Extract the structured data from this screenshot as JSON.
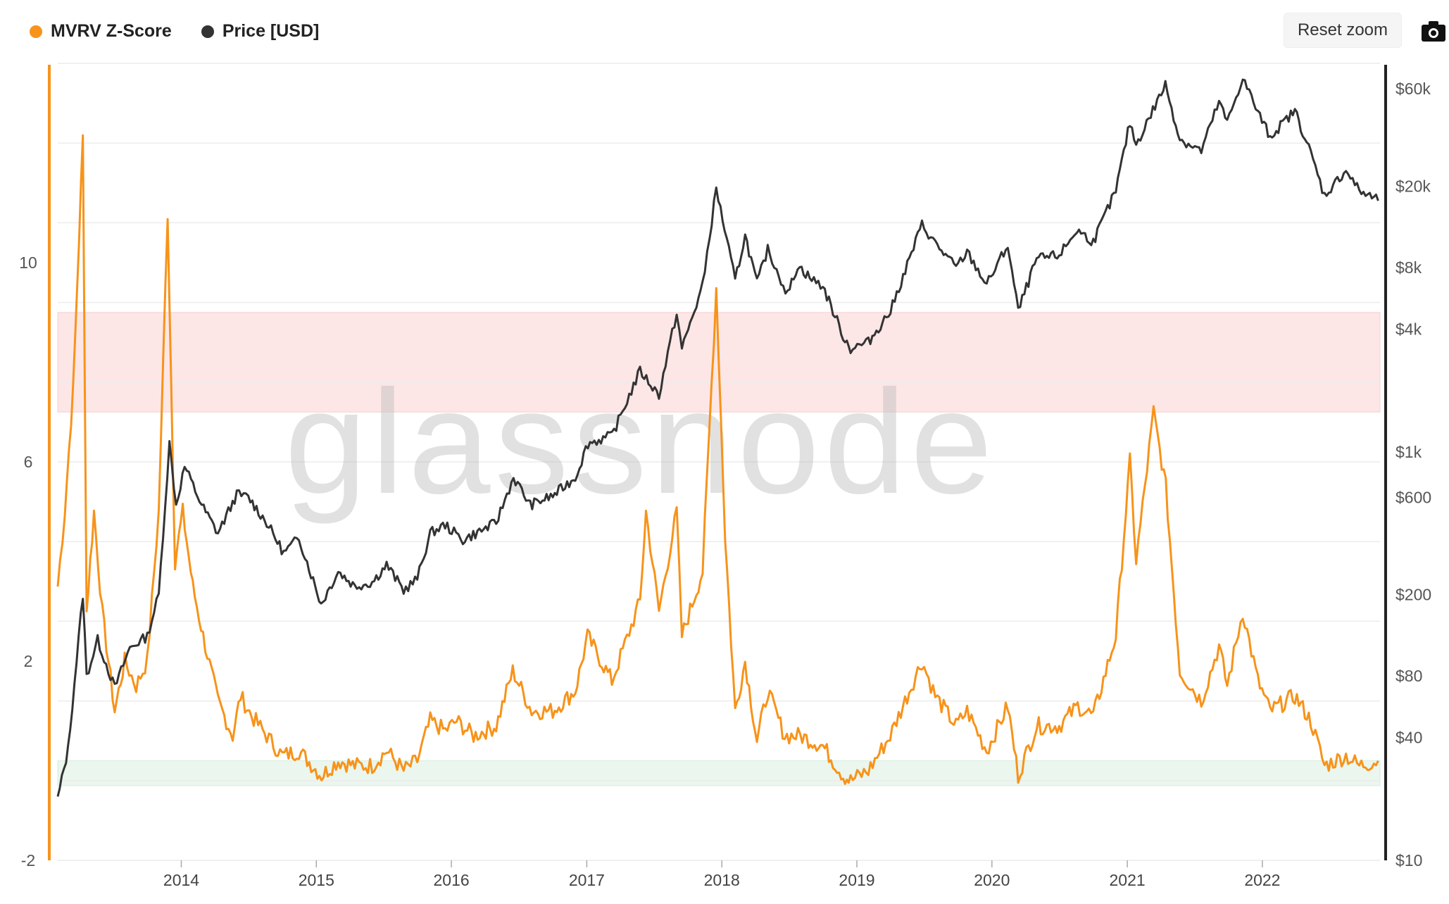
{
  "legend": {
    "series1_label": "MVRV Z-Score",
    "series2_label": "Price [USD]"
  },
  "toolbar": {
    "reset_zoom_label": "Reset zoom",
    "export_icon": "camera-icon"
  },
  "watermark": "glassnode",
  "colors": {
    "zscore": "#f7931a",
    "price": "#333333",
    "red_band": "#fde6e6",
    "green_band": "#eaf6ee",
    "grid": "#ececec"
  },
  "chart_data": {
    "type": "line",
    "x_ticks": [
      "2014",
      "2015",
      "2016",
      "2017",
      "2018",
      "2019",
      "2020",
      "2021",
      "2022"
    ],
    "x_range": [
      "2013-02-01",
      "2022-11-15"
    ],
    "left_axis": {
      "ticks": [
        "10",
        "6",
        "2",
        "-2"
      ],
      "range": [
        -2,
        14
      ]
    },
    "right_axis": {
      "scale": "log",
      "ticks": [
        "$60k",
        "$20k",
        "$8k",
        "$4k",
        "$1k",
        "$600",
        "$200",
        "$80",
        "$40",
        "$10"
      ],
      "range": [
        10,
        80000
      ]
    },
    "bands": [
      {
        "axis": "left",
        "from": 7,
        "to": 9,
        "color": "red"
      },
      {
        "axis": "left",
        "from": -0.5,
        "to": 0,
        "color": "green"
      }
    ],
    "series": [
      {
        "name": "MVRV Z-Score",
        "axis": "left",
        "points": [
          [
            "2013-02-01",
            3.5
          ],
          [
            "2013-02-20",
            5.0
          ],
          [
            "2013-03-15",
            7.5
          ],
          [
            "2013-04-10",
            12.5
          ],
          [
            "2013-04-20",
            3.0
          ],
          [
            "2013-05-10",
            5.0
          ],
          [
            "2013-06-01",
            3.0
          ],
          [
            "2013-07-05",
            1.0
          ],
          [
            "2013-08-01",
            2.0
          ],
          [
            "2013-09-01",
            1.5
          ],
          [
            "2013-10-01",
            2.0
          ],
          [
            "2013-11-01",
            5.0
          ],
          [
            "2013-11-25",
            11.0
          ],
          [
            "2013-12-15",
            4.0
          ],
          [
            "2014-01-05",
            5.0
          ],
          [
            "2014-02-01",
            3.5
          ],
          [
            "2014-03-01",
            2.5
          ],
          [
            "2014-04-10",
            1.2
          ],
          [
            "2014-05-20",
            0.5
          ],
          [
            "2014-06-10",
            1.3
          ],
          [
            "2014-07-10",
            0.9
          ],
          [
            "2014-08-20",
            0.5
          ],
          [
            "2014-10-01",
            0.1
          ],
          [
            "2014-11-15",
            0.2
          ],
          [
            "2015-01-15",
            -0.3
          ],
          [
            "2015-03-01",
            0.0
          ],
          [
            "2015-04-15",
            -0.1
          ],
          [
            "2015-06-01",
            -0.1
          ],
          [
            "2015-07-10",
            0.2
          ],
          [
            "2015-08-25",
            -0.2
          ],
          [
            "2015-10-01",
            0.0
          ],
          [
            "2015-11-05",
            0.8
          ],
          [
            "2015-12-15",
            0.6
          ],
          [
            "2016-01-15",
            0.8
          ],
          [
            "2016-03-01",
            0.5
          ],
          [
            "2016-05-01",
            0.7
          ],
          [
            "2016-06-15",
            1.8
          ],
          [
            "2016-08-05",
            1.0
          ],
          [
            "2016-10-01",
            1.0
          ],
          [
            "2016-12-01",
            1.4
          ],
          [
            "2017-01-03",
            2.5
          ],
          [
            "2017-03-10",
            1.6
          ],
          [
            "2017-05-25",
            3.2
          ],
          [
            "2017-06-10",
            5.0
          ],
          [
            "2017-07-15",
            3.0
          ],
          [
            "2017-09-01",
            5.0
          ],
          [
            "2017-09-15",
            2.5
          ],
          [
            "2017-11-10",
            3.8
          ],
          [
            "2017-12-17",
            9.5
          ],
          [
            "2018-01-10",
            4.5
          ],
          [
            "2018-02-06",
            1.0
          ],
          [
            "2018-03-05",
            2.0
          ],
          [
            "2018-04-06",
            0.4
          ],
          [
            "2018-05-05",
            1.4
          ],
          [
            "2018-06-20",
            0.5
          ],
          [
            "2018-08-01",
            0.5
          ],
          [
            "2018-10-01",
            0.3
          ],
          [
            "2018-11-25",
            -0.3
          ],
          [
            "2018-12-15",
            -0.4
          ],
          [
            "2019-02-01",
            -0.2
          ],
          [
            "2019-04-01",
            0.5
          ],
          [
            "2019-06-26",
            2.0
          ],
          [
            "2019-08-01",
            1.3
          ],
          [
            "2019-09-26",
            0.7
          ],
          [
            "2019-10-26",
            1.0
          ],
          [
            "2019-12-18",
            0.2
          ],
          [
            "2020-02-13",
            1.1
          ],
          [
            "2020-03-12",
            -0.3
          ],
          [
            "2020-05-01",
            0.7
          ],
          [
            "2020-07-01",
            0.7
          ],
          [
            "2020-08-20",
            1.1
          ],
          [
            "2020-10-01",
            0.9
          ],
          [
            "2020-12-01",
            2.5
          ],
          [
            "2021-01-08",
            6.0
          ],
          [
            "2021-01-25",
            4.0
          ],
          [
            "2021-03-13",
            7.0
          ],
          [
            "2021-04-15",
            5.5
          ],
          [
            "2021-05-23",
            1.8
          ],
          [
            "2021-07-20",
            1.2
          ],
          [
            "2021-09-06",
            2.3
          ],
          [
            "2021-09-28",
            1.5
          ],
          [
            "2021-11-09",
            3.0
          ],
          [
            "2021-12-20",
            1.6
          ],
          [
            "2022-01-22",
            1.0
          ],
          [
            "2022-03-30",
            1.3
          ],
          [
            "2022-05-12",
            0.8
          ],
          [
            "2022-06-18",
            -0.1
          ],
          [
            "2022-08-15",
            0.1
          ],
          [
            "2022-09-20",
            -0.1
          ],
          [
            "2022-11-10",
            0.0
          ]
        ]
      },
      {
        "name": "Price [USD]",
        "axis": "right",
        "points": [
          [
            "2013-02-01",
            20
          ],
          [
            "2013-03-01",
            35
          ],
          [
            "2013-04-10",
            200
          ],
          [
            "2013-04-20",
            80
          ],
          [
            "2013-05-20",
            120
          ],
          [
            "2013-07-05",
            70
          ],
          [
            "2013-08-15",
            110
          ],
          [
            "2013-10-01",
            125
          ],
          [
            "2013-11-01",
            200
          ],
          [
            "2013-11-30",
            1100
          ],
          [
            "2013-12-18",
            550
          ],
          [
            "2014-01-10",
            850
          ],
          [
            "2014-02-25",
            550
          ],
          [
            "2014-04-10",
            400
          ],
          [
            "2014-05-31",
            620
          ],
          [
            "2014-07-01",
            600
          ],
          [
            "2014-08-20",
            450
          ],
          [
            "2014-10-05",
            320
          ],
          [
            "2014-11-15",
            380
          ],
          [
            "2015-01-14",
            180
          ],
          [
            "2015-03-01",
            260
          ],
          [
            "2015-04-15",
            220
          ],
          [
            "2015-06-01",
            230
          ],
          [
            "2015-07-10",
            280
          ],
          [
            "2015-08-25",
            210
          ],
          [
            "2015-10-01",
            240
          ],
          [
            "2015-11-05",
            400
          ],
          [
            "2015-12-15",
            440
          ],
          [
            "2016-02-01",
            370
          ],
          [
            "2016-05-01",
            450
          ],
          [
            "2016-06-17",
            750
          ],
          [
            "2016-08-01",
            550
          ],
          [
            "2016-10-01",
            610
          ],
          [
            "2016-12-01",
            750
          ],
          [
            "2017-01-04",
            1100
          ],
          [
            "2017-03-10",
            1200
          ],
          [
            "2017-05-25",
            2500
          ],
          [
            "2017-07-15",
            1900
          ],
          [
            "2017-09-01",
            4800
          ],
          [
            "2017-09-15",
            3200
          ],
          [
            "2017-11-10",
            6500
          ],
          [
            "2017-12-17",
            19500
          ],
          [
            "2018-02-06",
            6900
          ],
          [
            "2018-03-05",
            11500
          ],
          [
            "2018-04-06",
            6700
          ],
          [
            "2018-05-05",
            9800
          ],
          [
            "2018-06-28",
            5900
          ],
          [
            "2018-07-25",
            8200
          ],
          [
            "2018-09-01",
            7000
          ],
          [
            "2018-10-01",
            6500
          ],
          [
            "2018-11-25",
            3700
          ],
          [
            "2018-12-15",
            3200
          ],
          [
            "2019-02-01",
            3450
          ],
          [
            "2019-04-02",
            4900
          ],
          [
            "2019-06-26",
            13000
          ],
          [
            "2019-08-01",
            10500
          ],
          [
            "2019-09-26",
            8000
          ],
          [
            "2019-10-26",
            9500
          ],
          [
            "2019-12-18",
            6600
          ],
          [
            "2020-02-13",
            10300
          ],
          [
            "2020-03-12",
            4900
          ],
          [
            "2020-05-01",
            8800
          ],
          [
            "2020-07-01",
            9200
          ],
          [
            "2020-08-18",
            12200
          ],
          [
            "2020-10-01",
            10700
          ],
          [
            "2020-12-01",
            19000
          ],
          [
            "2021-01-08",
            41000
          ],
          [
            "2021-01-25",
            32000
          ],
          [
            "2021-04-14",
            63000
          ],
          [
            "2021-05-23",
            34000
          ],
          [
            "2021-07-20",
            29800
          ],
          [
            "2021-09-06",
            52000
          ],
          [
            "2021-09-28",
            41000
          ],
          [
            "2021-11-09",
            68000
          ],
          [
            "2021-12-20",
            46000
          ],
          [
            "2022-01-22",
            35000
          ],
          [
            "2022-03-30",
            47000
          ],
          [
            "2022-05-12",
            29000
          ],
          [
            "2022-06-18",
            18000
          ],
          [
            "2022-08-15",
            24000
          ],
          [
            "2022-09-20",
            19000
          ],
          [
            "2022-11-10",
            17000
          ]
        ]
      }
    ]
  }
}
